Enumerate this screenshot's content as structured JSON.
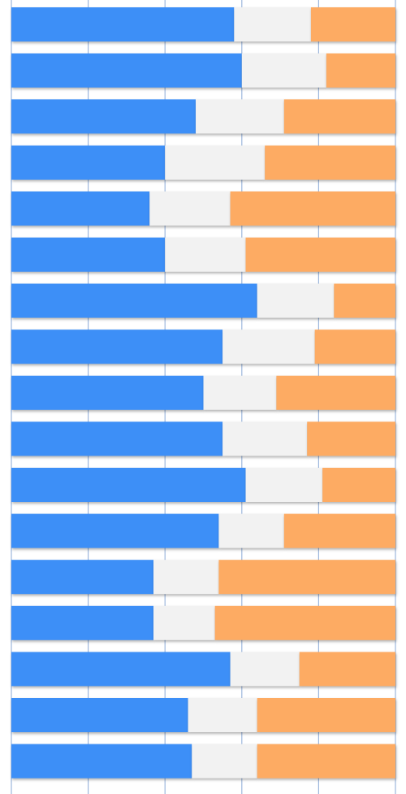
{
  "chart_data": {
    "type": "stacked_bar_horizontal",
    "categories": [
      null,
      null,
      null,
      null,
      null,
      null,
      null,
      null,
      null,
      null,
      null,
      null,
      null,
      null,
      null,
      null,
      null
    ],
    "series": [
      {
        "color": "#3d8ff7",
        "values": [
          58,
          60,
          48,
          40,
          36,
          40,
          64,
          55,
          50,
          55,
          61,
          54,
          37,
          37,
          57,
          46,
          47
        ]
      },
      {
        "color": "#f2f2f2",
        "values": [
          20,
          22,
          23,
          26,
          21,
          21,
          20,
          24,
          19,
          22,
          20,
          17,
          17,
          16,
          18,
          18,
          17
        ]
      },
      {
        "color": "#fdab63",
        "values": [
          22,
          18,
          29,
          34,
          43,
          39,
          16,
          21,
          31,
          23,
          19,
          29,
          46,
          47,
          25,
          36,
          36
        ]
      }
    ],
    "xlim": [
      0,
      100
    ],
    "xticks": [
      0,
      20,
      40,
      60,
      80,
      100
    ],
    "grid": true
  }
}
